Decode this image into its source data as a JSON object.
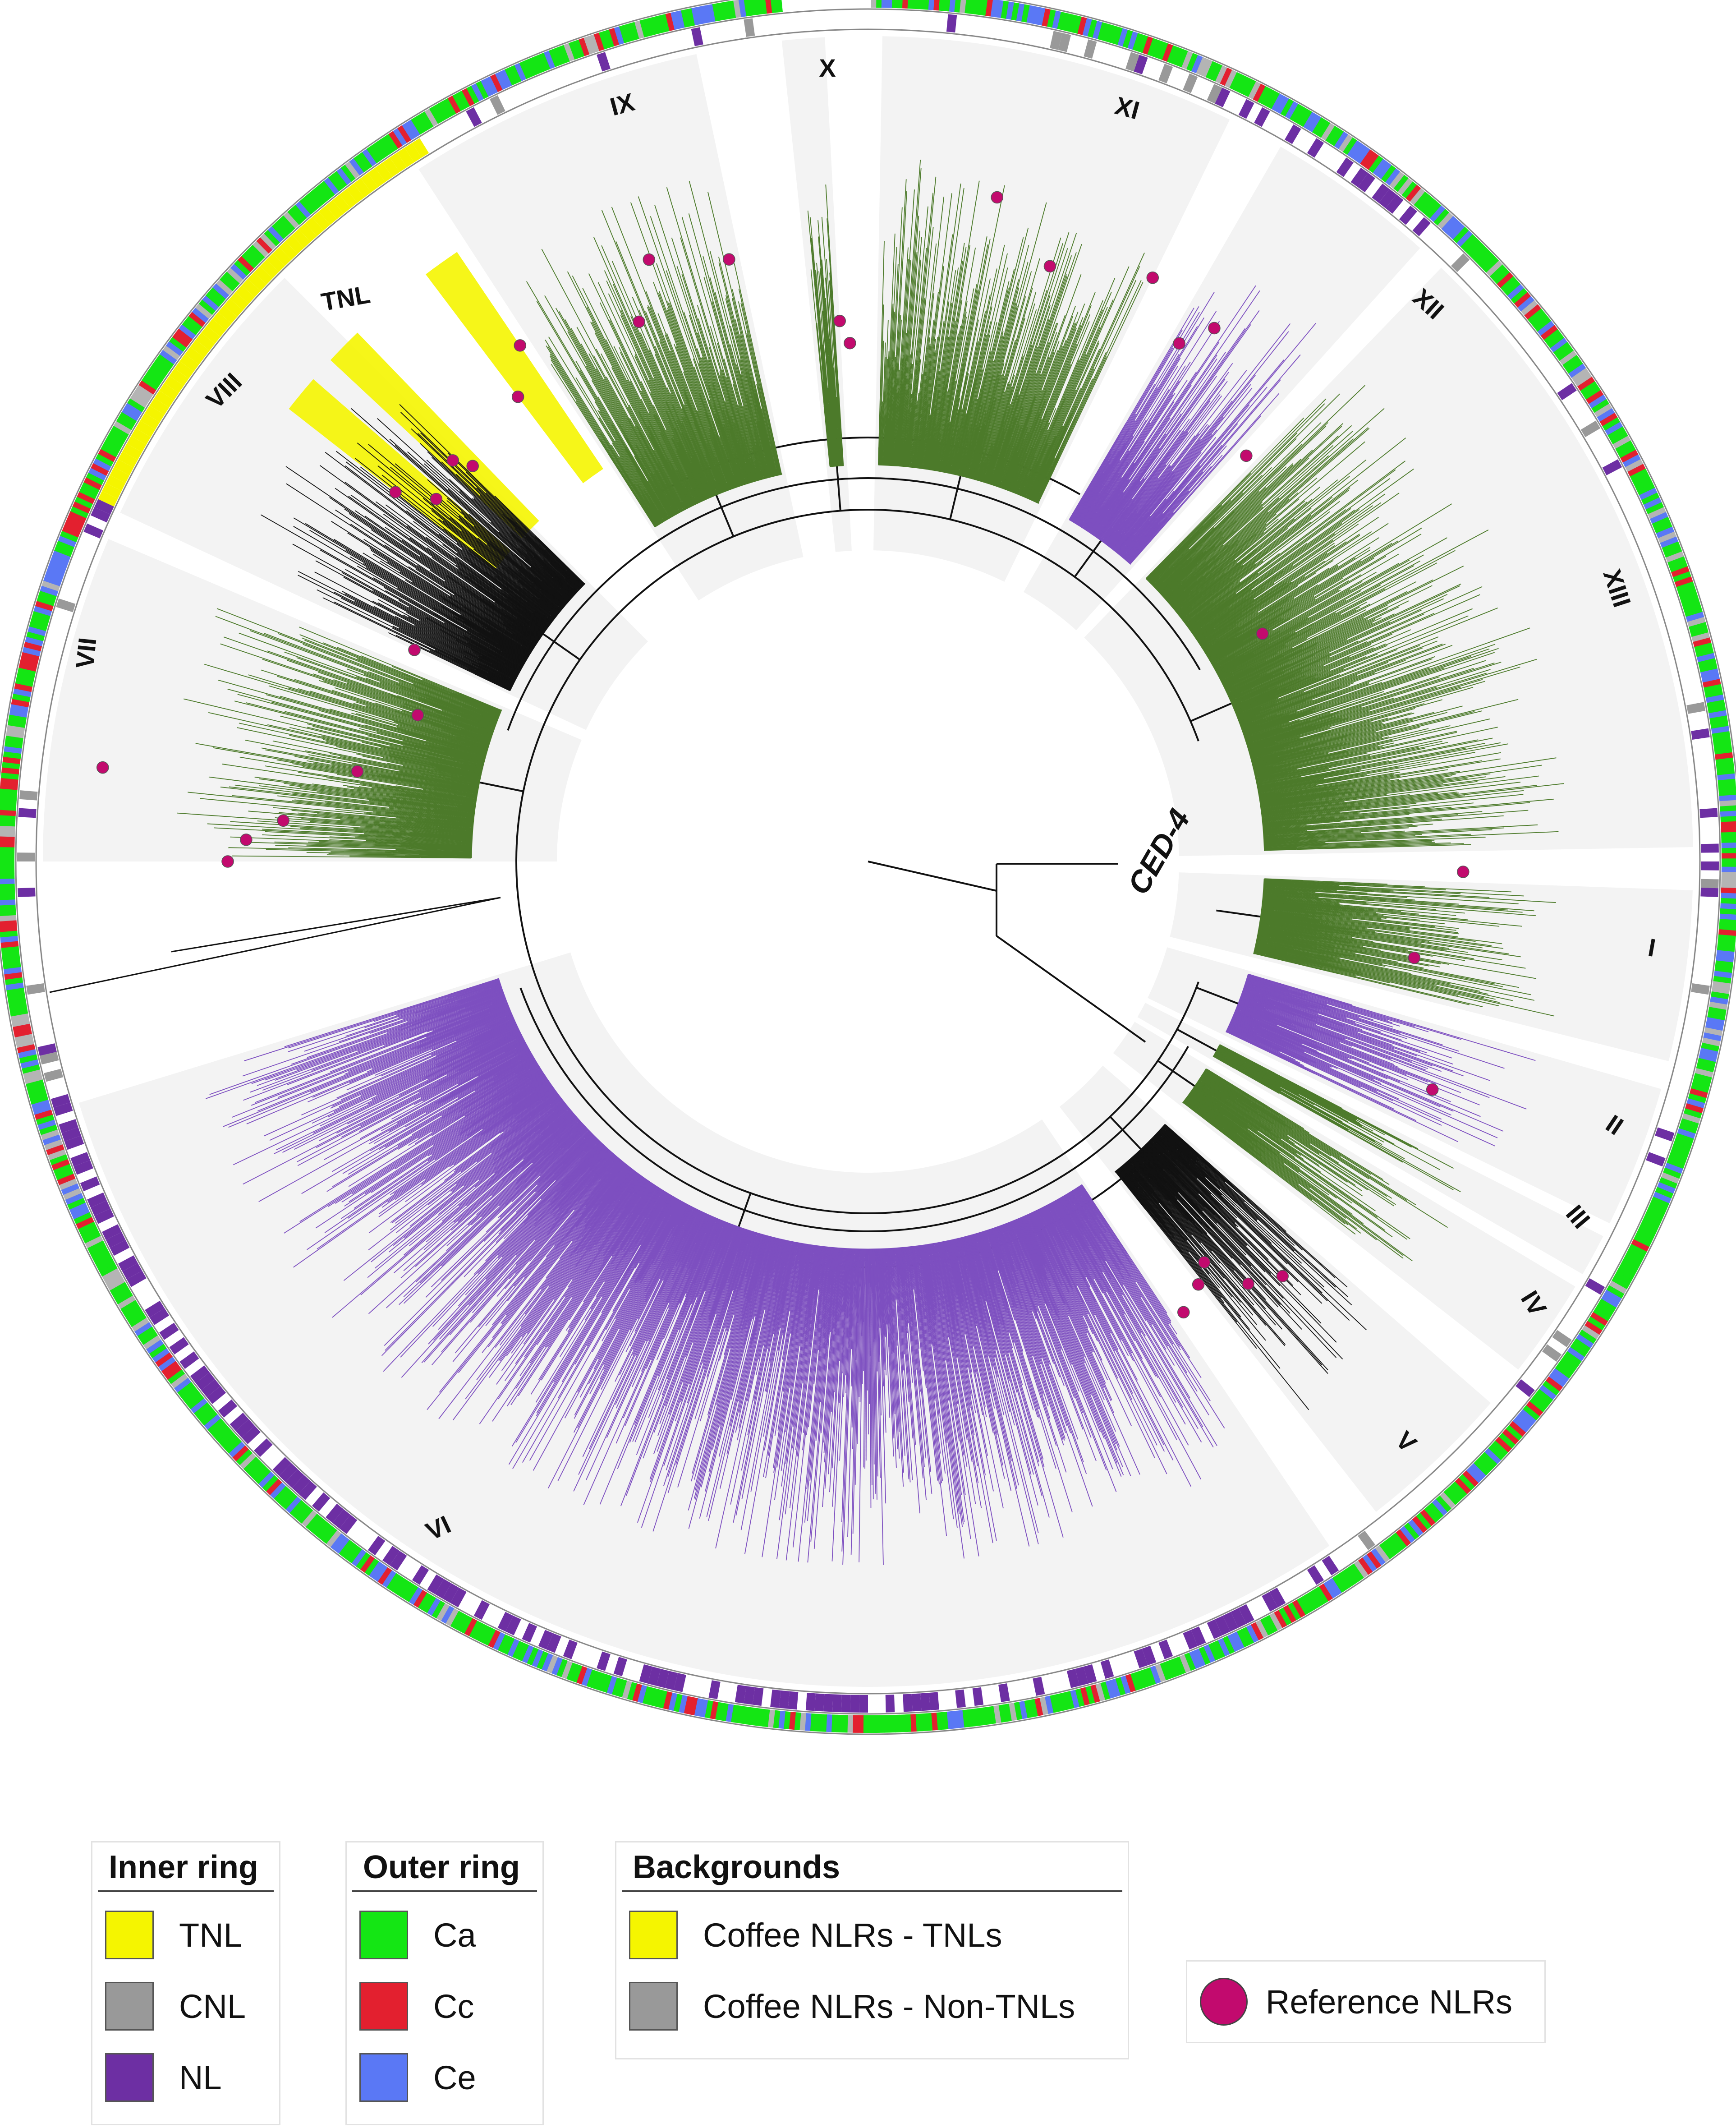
{
  "figure": {
    "root_label": "CED-4",
    "clades": [
      "I",
      "II",
      "III",
      "IV",
      "V",
      "VI",
      "VII",
      "VIII",
      "IX",
      "X",
      "XI",
      "XII",
      "XIII"
    ],
    "special_label": "TNL"
  },
  "colors": {
    "tnl": "#f5f500",
    "cnl": "#999999",
    "nl": "#6d2fa3",
    "ca": "#14e614",
    "cc": "#e3202f",
    "ce": "#5a78f5",
    "branch_green": "#4c7a2a",
    "branch_purple": "#7d4fc0",
    "reference_dot": "#c20a6e",
    "background_gray": "#f3f3f3"
  },
  "legend": {
    "inner_ring": {
      "title": "Inner ring",
      "items": [
        {
          "label": "TNL",
          "color": "#f5f500"
        },
        {
          "label": "CNL",
          "color": "#999999"
        },
        {
          "label": "NL",
          "color": "#6d2fa3"
        }
      ]
    },
    "outer_ring": {
      "title": "Outer ring",
      "items": [
        {
          "label": "Ca",
          "color": "#14e614"
        },
        {
          "label": "Cc",
          "color": "#e3202f"
        },
        {
          "label": "Ce",
          "color": "#5a78f5"
        }
      ]
    },
    "backgrounds": {
      "title": "Backgrounds",
      "items": [
        {
          "label": "Coffee NLRs - TNLs",
          "color": "#f5f500"
        },
        {
          "label": "Coffee NLRs - Non-TNLs",
          "color": "#999999"
        }
      ]
    },
    "reference": {
      "label": "Reference NLRs",
      "color": "#c20a6e"
    }
  }
}
